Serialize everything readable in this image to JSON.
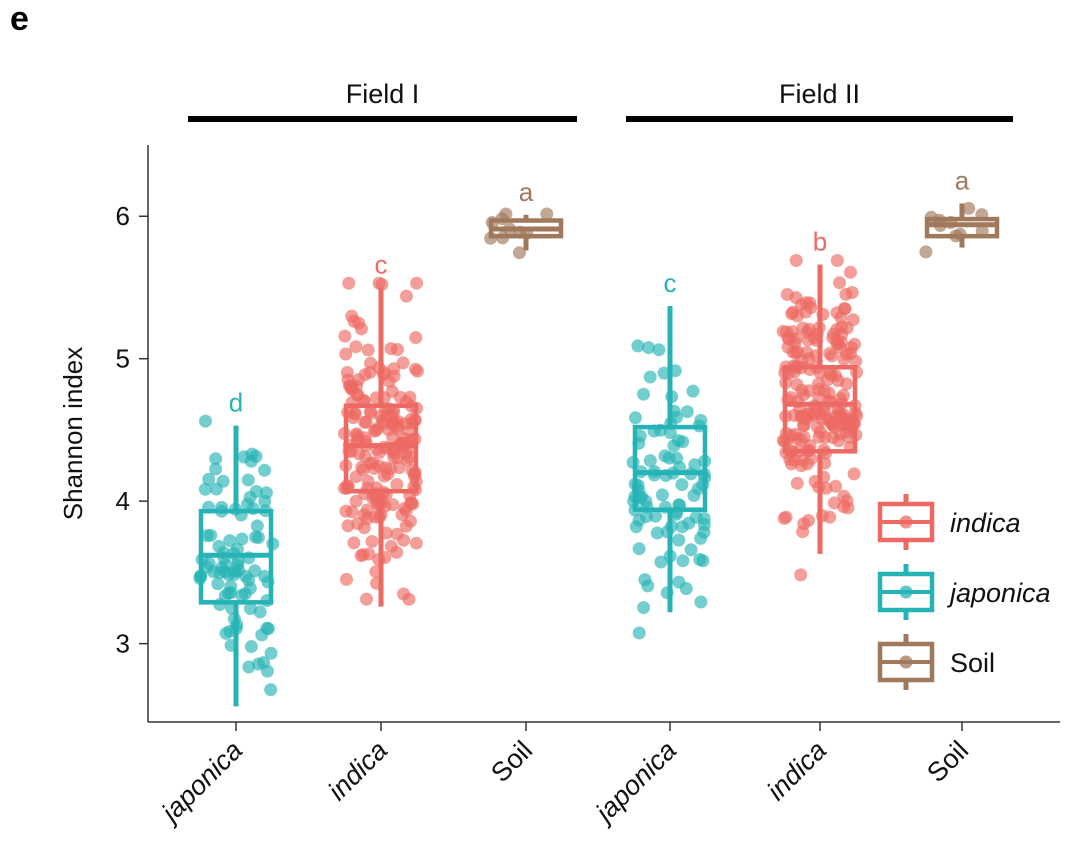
{
  "panel_label": "e",
  "colors": {
    "japonica": "#26b3b5",
    "indica": "#ec6a63",
    "soil": "#a0785b",
    "axis": "#333333",
    "bracket": "#000000"
  },
  "chart_data": {
    "type": "box",
    "ylabel": "Shannon index",
    "ylim": [
      2.45,
      6.5
    ],
    "yticks": [
      3,
      4,
      5,
      6
    ],
    "groups": [
      {
        "name": "Field I",
        "categories": [
          "japonica",
          "indica",
          "Soil"
        ]
      },
      {
        "name": "Field II",
        "categories": [
          "japonica",
          "indica",
          "Soil"
        ]
      }
    ],
    "legend": {
      "position": "bottom-right",
      "entries": [
        {
          "label": "indica",
          "series": "indica"
        },
        {
          "label": "japonica",
          "series": "japonica"
        },
        {
          "label": "Soil",
          "series": "soil"
        }
      ]
    },
    "boxes": [
      {
        "field": "Field I",
        "category": "japonica",
        "series": "japonica",
        "letter": "d",
        "whisker_low": 2.56,
        "q1": 3.29,
        "median": 3.62,
        "q3": 3.93,
        "whisker_high": 4.53,
        "n": 90
      },
      {
        "field": "Field I",
        "category": "indica",
        "series": "indica",
        "letter": "c",
        "whisker_low": 3.26,
        "q1": 4.07,
        "median": 4.39,
        "q3": 4.67,
        "whisker_high": 5.5,
        "n": 200
      },
      {
        "field": "Field I",
        "category": "Soil",
        "series": "soil",
        "letter": "a",
        "whisker_low": 5.76,
        "q1": 5.86,
        "median": 5.91,
        "q3": 5.97,
        "whisker_high": 6.01,
        "n": 10
      },
      {
        "field": "Field II",
        "category": "japonica",
        "series": "japonica",
        "letter": "c",
        "whisker_low": 3.22,
        "q1": 3.94,
        "median": 4.2,
        "q3": 4.52,
        "whisker_high": 5.37,
        "n": 90
      },
      {
        "field": "Field II",
        "category": "indica",
        "series": "indica",
        "letter": "b",
        "whisker_low": 3.63,
        "q1": 4.35,
        "median": 4.68,
        "q3": 4.94,
        "whisker_high": 5.66,
        "n": 200
      },
      {
        "field": "Field II",
        "category": "Soil",
        "series": "soil",
        "letter": "a",
        "whisker_low": 5.78,
        "q1": 5.86,
        "median": 5.94,
        "q3": 5.98,
        "whisker_high": 6.09,
        "n": 10
      }
    ]
  }
}
